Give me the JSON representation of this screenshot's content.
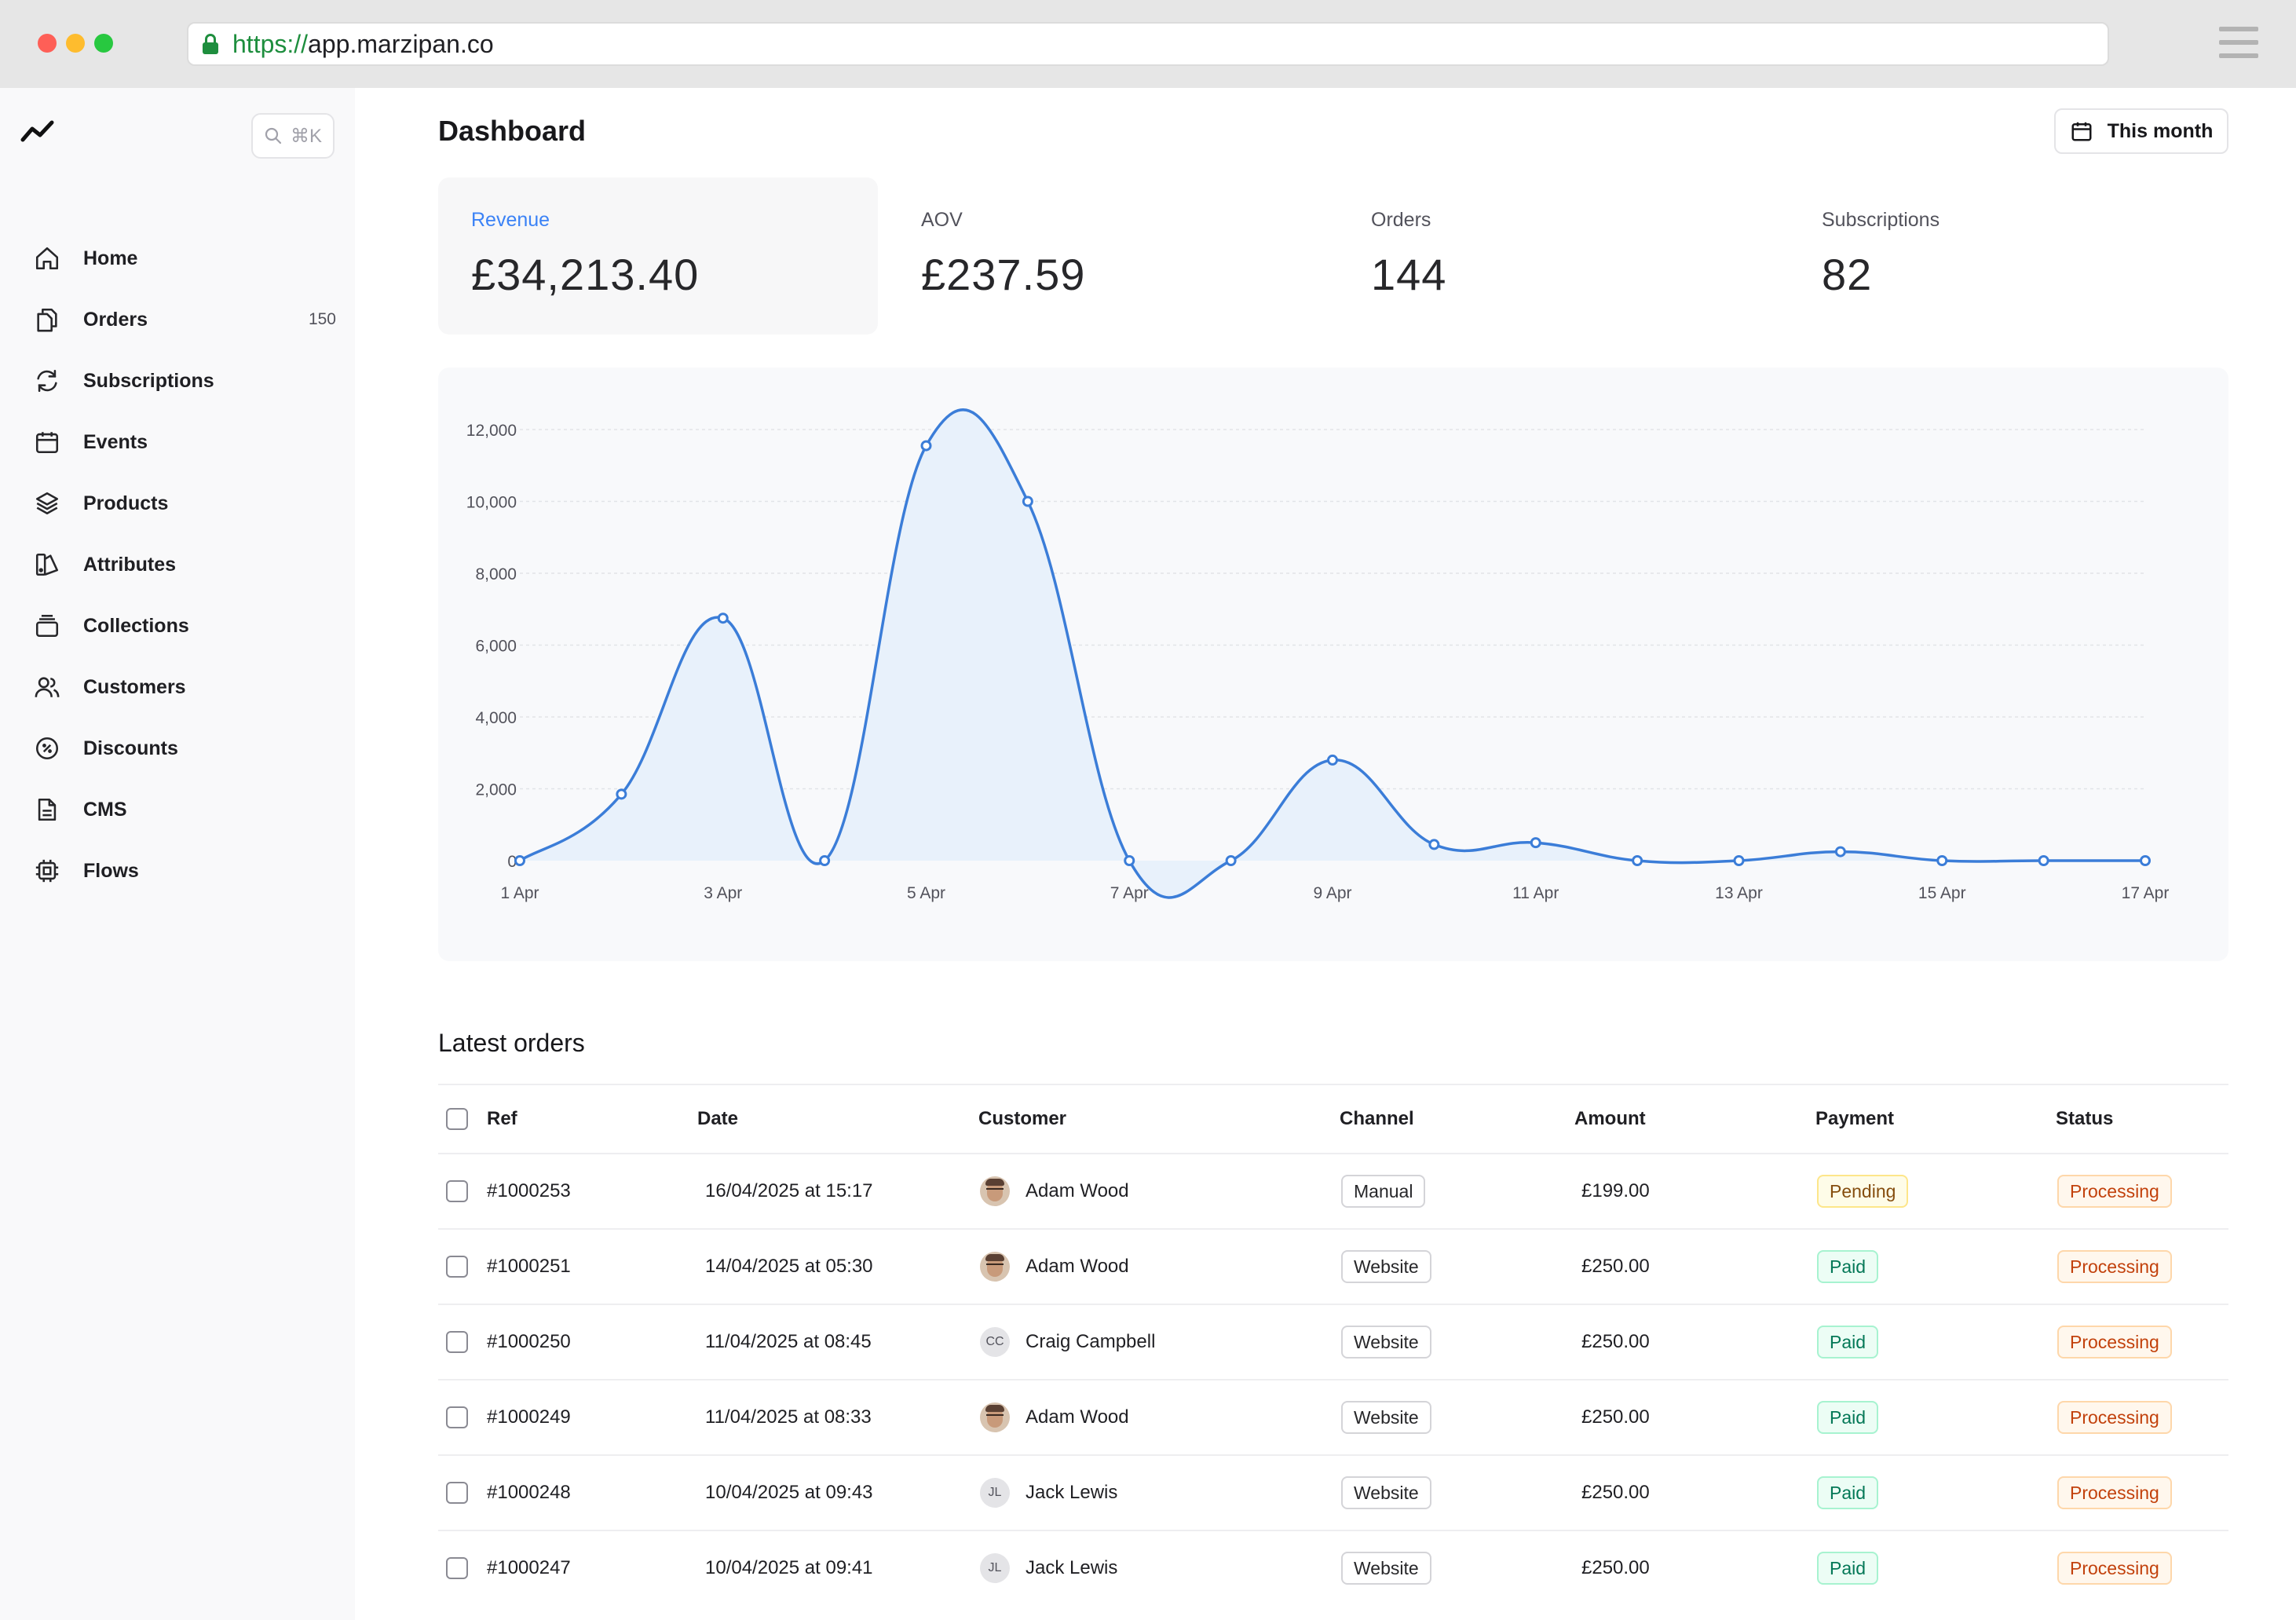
{
  "browser": {
    "url_scheme": "https://",
    "url_host": "app.marzipan.co"
  },
  "search": {
    "shortcut": "⌘K"
  },
  "sidebar": {
    "items": [
      {
        "label": "Home",
        "icon": "home-icon"
      },
      {
        "label": "Orders",
        "icon": "orders-icon",
        "count": "150"
      },
      {
        "label": "Subscriptions",
        "icon": "subscriptions-icon"
      },
      {
        "label": "Events",
        "icon": "events-icon"
      },
      {
        "label": "Products",
        "icon": "products-icon"
      },
      {
        "label": "Attributes",
        "icon": "attributes-icon"
      },
      {
        "label": "Collections",
        "icon": "collections-icon"
      },
      {
        "label": "Customers",
        "icon": "customers-icon"
      },
      {
        "label": "Discounts",
        "icon": "discounts-icon"
      },
      {
        "label": "CMS",
        "icon": "cms-icon"
      },
      {
        "label": "Flows",
        "icon": "flows-icon"
      }
    ]
  },
  "header": {
    "title": "Dashboard",
    "period_label": "This month"
  },
  "kpis": [
    {
      "label": "Revenue",
      "value": "£34,213.40",
      "active": true
    },
    {
      "label": "AOV",
      "value": "£237.59",
      "active": false
    },
    {
      "label": "Orders",
      "value": "144",
      "active": false
    },
    {
      "label": "Subscriptions",
      "value": "82",
      "active": false
    }
  ],
  "colors": {
    "accent": "#3b7dd8",
    "area_fill": "#e8f1fb"
  },
  "chart_data": {
    "type": "area",
    "x": [
      "1 Apr",
      "2 Apr",
      "3 Apr",
      "4 Apr",
      "5 Apr",
      "6 Apr",
      "7 Apr",
      "8 Apr",
      "9 Apr",
      "10 Apr",
      "11 Apr",
      "12 Apr",
      "13 Apr",
      "14 Apr",
      "15 Apr",
      "16 Apr",
      "17 Apr"
    ],
    "x_tick_labels": [
      "1 Apr",
      "3 Apr",
      "5 Apr",
      "7 Apr",
      "9 Apr",
      "11 Apr",
      "13 Apr",
      "15 Apr",
      "17 Apr"
    ],
    "series": [
      {
        "values": [
          0,
          1850,
          6750,
          0,
          11550,
          10000,
          0,
          0,
          2800,
          450,
          500,
          0,
          0,
          250,
          0,
          0,
          0
        ]
      }
    ],
    "y_ticks": [
      "0",
      "2,000",
      "4,000",
      "6,000",
      "8,000",
      "10,000",
      "12,000"
    ],
    "ylim": [
      0,
      12000
    ],
    "grid": true,
    "legend": "none"
  },
  "orders": {
    "title": "Latest orders",
    "columns": [
      "Ref",
      "Date",
      "Customer",
      "Channel",
      "Amount",
      "Payment",
      "Status"
    ],
    "rows": [
      {
        "ref": "#1000253",
        "date": "16/04/2025 at 15:17",
        "customer": "Adam Wood",
        "avatar": "photo",
        "initials": "",
        "channel": "Manual",
        "amount": "£199.00",
        "payment": "Pending",
        "payment_kind": "pending",
        "status": "Processing"
      },
      {
        "ref": "#1000251",
        "date": "14/04/2025 at 05:30",
        "customer": "Adam Wood",
        "avatar": "photo",
        "initials": "",
        "channel": "Website",
        "amount": "£250.00",
        "payment": "Paid",
        "payment_kind": "paid",
        "status": "Processing"
      },
      {
        "ref": "#1000250",
        "date": "11/04/2025 at 08:45",
        "customer": "Craig Campbell",
        "avatar": "initials",
        "initials": "CC",
        "channel": "Website",
        "amount": "£250.00",
        "payment": "Paid",
        "payment_kind": "paid",
        "status": "Processing"
      },
      {
        "ref": "#1000249",
        "date": "11/04/2025 at 08:33",
        "customer": "Adam Wood",
        "avatar": "photo",
        "initials": "",
        "channel": "Website",
        "amount": "£250.00",
        "payment": "Paid",
        "payment_kind": "paid",
        "status": "Processing"
      },
      {
        "ref": "#1000248",
        "date": "10/04/2025 at 09:43",
        "customer": "Jack Lewis",
        "avatar": "initials",
        "initials": "JL",
        "channel": "Website",
        "amount": "£250.00",
        "payment": "Paid",
        "payment_kind": "paid",
        "status": "Processing"
      },
      {
        "ref": "#1000247",
        "date": "10/04/2025 at 09:41",
        "customer": "Jack Lewis",
        "avatar": "initials",
        "initials": "JL",
        "channel": "Website",
        "amount": "£250.00",
        "payment": "Paid",
        "payment_kind": "paid",
        "status": "Processing"
      }
    ]
  }
}
